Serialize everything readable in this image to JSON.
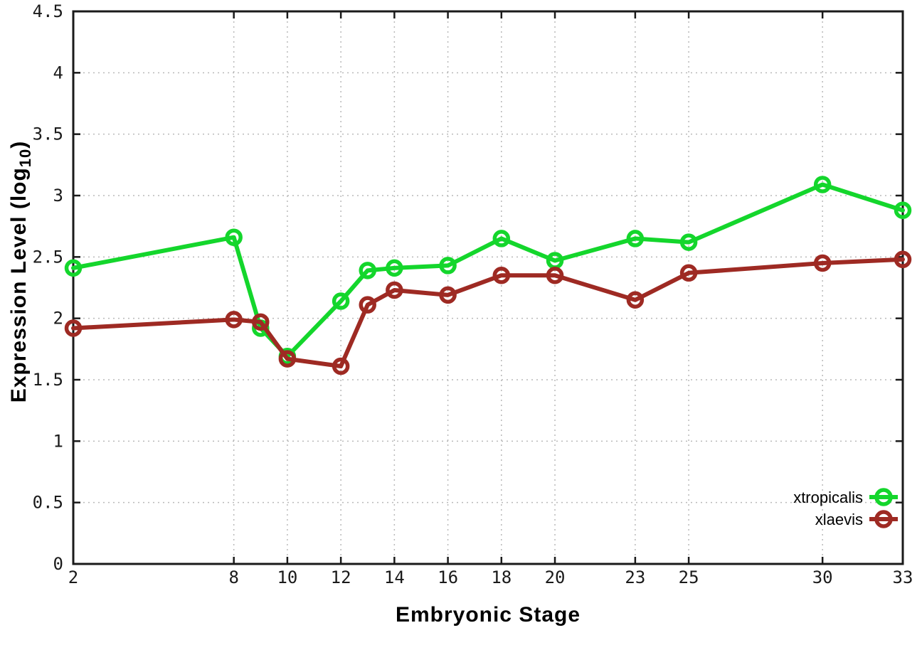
{
  "chart_data": {
    "type": "line",
    "title": "",
    "xlabel": "Embryonic Stage",
    "ylabel": "Expression Level (log10)",
    "ylabel_parts": {
      "main": "Expression Level (log",
      "sub": "10",
      "end": ")"
    },
    "x": [
      2,
      8,
      9,
      10,
      12,
      13,
      14,
      16,
      18,
      20,
      23,
      25,
      30,
      33
    ],
    "xticks": [
      2,
      8,
      10,
      12,
      14,
      16,
      18,
      20,
      23,
      25,
      30,
      33
    ],
    "yticks": [
      0,
      0.5,
      1,
      1.5,
      2,
      2.5,
      3,
      3.5,
      4,
      4.5
    ],
    "xlim": [
      2,
      33
    ],
    "ylim": [
      0,
      4.5
    ],
    "grid": true,
    "marker": "open-circle",
    "legend_position": "inside-bottom-right",
    "series": [
      {
        "name": "xtropicalis",
        "color": "#14d62c",
        "values": [
          2.41,
          2.66,
          1.92,
          1.69,
          2.14,
          2.39,
          2.41,
          2.43,
          2.65,
          2.47,
          2.65,
          2.62,
          3.09,
          2.88
        ]
      },
      {
        "name": "xlaevis",
        "color": "#9e2a23",
        "values": [
          1.92,
          1.99,
          1.97,
          1.67,
          1.61,
          2.11,
          2.23,
          2.19,
          2.35,
          2.35,
          2.15,
          2.37,
          2.45,
          2.48
        ]
      }
    ]
  },
  "colors": {
    "background": "#ffffff",
    "axis": "#1a1a1a",
    "grid": "#b9b9b9",
    "series_xtropicalis": "#14d62c",
    "series_xlaevis": "#9e2a23"
  }
}
